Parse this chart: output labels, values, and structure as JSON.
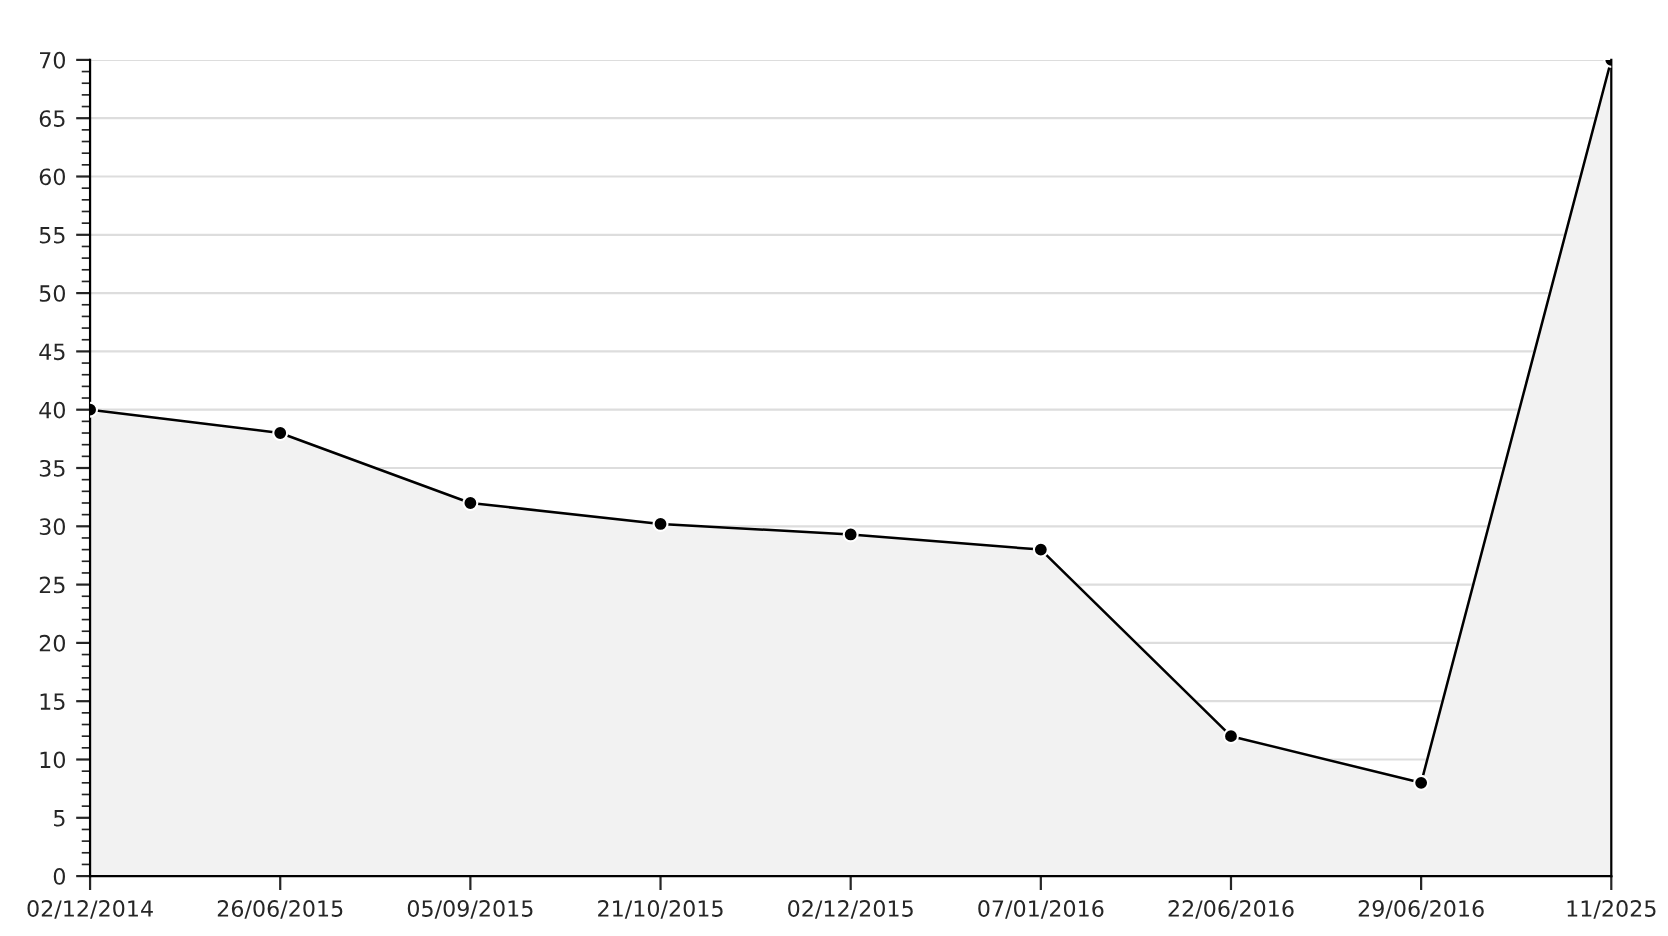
{
  "chart_data": {
    "type": "area",
    "categories": [
      "02/12/2014",
      "26/06/2015",
      "05/09/2015",
      "21/10/2015",
      "02/12/2015",
      "07/01/2016",
      "22/06/2016",
      "29/06/2016",
      "11/2025"
    ],
    "series": [
      {
        "color": "#000000",
        "values": [
          40,
          38,
          32,
          30.2,
          29.3,
          28,
          12,
          8,
          70
        ]
      }
    ],
    "ylim": [
      0,
      70
    ],
    "yticks": [
      0,
      5,
      10,
      15,
      20,
      25,
      30,
      35,
      40,
      45,
      50,
      55,
      60,
      65,
      70
    ],
    "grid": "y",
    "marker": "circle",
    "line_style": "solid",
    "legend": false
  }
}
